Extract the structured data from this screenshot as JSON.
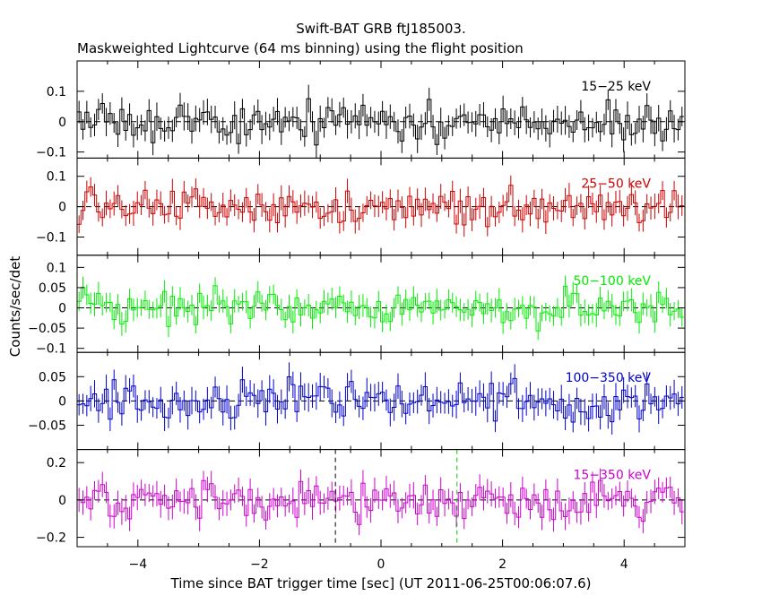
{
  "figure": {
    "title_line1": "Swift-BAT GRB ftJ185003.",
    "title_line2": "Maskweighted Lightcurve (64 ms binning) using the flight position",
    "ylabel": "Counts/sec/det",
    "xlabel": "Time since BAT trigger time [sec] (UT 2011-06-25T00:06:07.6)"
  },
  "chart_data": {
    "type": "line",
    "style": "step histogram with error bars, stacked panels sharing the x axis",
    "bin_width_s": 0.064,
    "xlim": [
      -5.0,
      5.0
    ],
    "x_ticks": [
      -4,
      -2,
      0,
      2,
      4
    ],
    "x_tick_labels": [
      "−4",
      "−2",
      "0",
      "2",
      "4"
    ],
    "zero_line": "dashed",
    "markers": [
      {
        "x": -0.75,
        "color": "#000000",
        "style": "dashed",
        "panel": "15-350 keV"
      },
      {
        "x": 1.25,
        "color": "#00cc00",
        "style": "dashed",
        "panel": "15-350 keV"
      }
    ],
    "panels": [
      {
        "label": "15−25 keV",
        "color": "#000000",
        "ylim": [
          -0.12,
          0.2
        ],
        "ticks": [
          -0.1,
          0,
          0.1
        ],
        "tick_labels": [
          "−0.1",
          "0",
          "0.1"
        ],
        "amp": 0.045,
        "err": 0.04
      },
      {
        "label": "25−50 keV",
        "color": "#cc0000",
        "ylim": [
          -0.16,
          0.16
        ],
        "ticks": [
          -0.1,
          0,
          0.1
        ],
        "tick_labels": [
          "−0.1",
          "0",
          "0.1"
        ],
        "amp": 0.04,
        "err": 0.035
      },
      {
        "label": "50−100 keV",
        "color": "#00ee00",
        "ylim": [
          -0.11,
          0.13
        ],
        "ticks": [
          -0.1,
          -0.05,
          0,
          0.05,
          0.1
        ],
        "tick_labels": [
          "−0.1",
          "−0.05",
          "0",
          "0.05",
          "0.1"
        ],
        "amp": 0.03,
        "err": 0.025
      },
      {
        "label": "100−350 keV",
        "color": "#0000cc",
        "ylim": [
          -0.1,
          0.1
        ],
        "ticks": [
          -0.05,
          0,
          0.05
        ],
        "tick_labels": [
          "−0.05",
          "0",
          "0.05"
        ],
        "amp": 0.03,
        "err": 0.025
      },
      {
        "label": "15−350 keV",
        "color": "#cc00cc",
        "ylim": [
          -0.25,
          0.27
        ],
        "ticks": [
          -0.2,
          0,
          0.2
        ],
        "tick_labels": [
          "−0.2",
          "0",
          "0.2"
        ],
        "amp": 0.07,
        "err": 0.06
      }
    ]
  }
}
